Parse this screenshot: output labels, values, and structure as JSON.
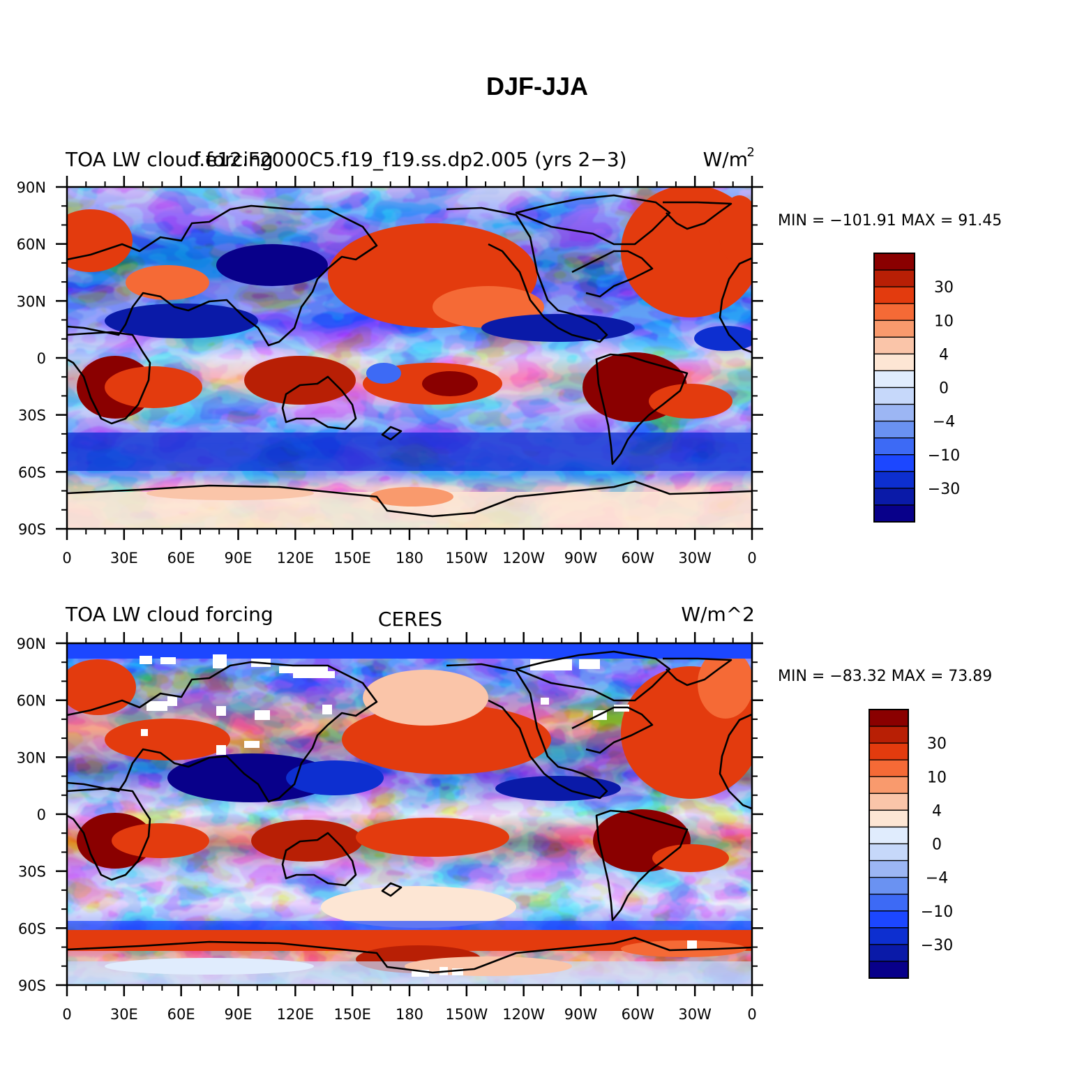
{
  "figure": {
    "title": "DJF-JJA"
  },
  "panels": [
    {
      "left_title": "TOA LW cloud forcing",
      "center_title": "f.e12.F2000C5.f19_f19.ss.dp2.005 (yrs 2−3)",
      "right_title": "W/m",
      "right_title_sup": "2",
      "minmax": "MIN = −101.91  MAX =   91.45"
    },
    {
      "left_title": "TOA LW cloud forcing",
      "center_title": "CERES",
      "right_title": "W/m^2",
      "right_title_sup": "",
      "minmax": "MIN = −83.32  MAX =   73.89"
    }
  ],
  "axes": {
    "lat_labels": [
      "90N",
      "60N",
      "30N",
      "0",
      "30S",
      "60S",
      "90S"
    ],
    "lon_labels": [
      "0",
      "30E",
      "60E",
      "90E",
      "120E",
      "150E",
      "180",
      "150W",
      "120W",
      "90W",
      "60W",
      "30W",
      "0"
    ]
  },
  "colorbar": {
    "colors": [
      "#08008a",
      "#0a1aa8",
      "#0d2fd0",
      "#1c47ff",
      "#3d6af5",
      "#6a92f2",
      "#9cb6f4",
      "#c6d8fa",
      "#e0ecfd",
      "#fde6d4",
      "#fac5a9",
      "#f99a6d",
      "#f56a36",
      "#e33b0e",
      "#b81f05",
      "#8a0000"
    ],
    "labels": [
      "30",
      "10",
      "4",
      "0",
      "−4",
      "−10",
      "−30"
    ]
  }
}
